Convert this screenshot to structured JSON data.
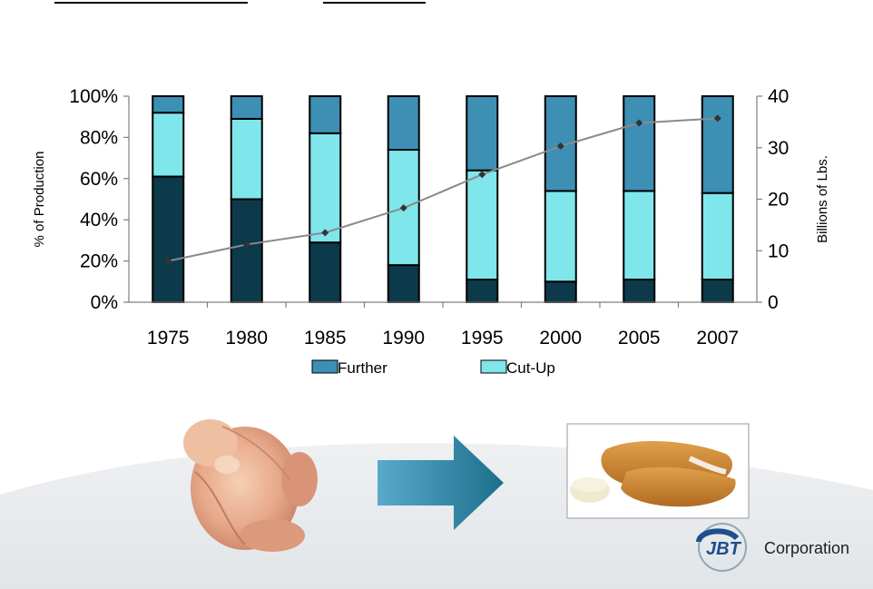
{
  "chart_data": {
    "type": "bar",
    "stacked": true,
    "categories": [
      "1975",
      "1980",
      "1985",
      "1990",
      "1995",
      "2000",
      "2005",
      "2007"
    ],
    "series": [
      {
        "name": "",
        "axis": "left",
        "color": "#0d3a4a",
        "values": [
          61,
          50,
          29,
          18,
          11,
          10,
          11,
          11
        ]
      },
      {
        "name": "Cut-Up",
        "axis": "left",
        "color": "#7fe6ec",
        "values": [
          31,
          39,
          53,
          56,
          53,
          44,
          43,
          42
        ]
      },
      {
        "name": "Further",
        "axis": "left",
        "color": "#3d8fb4",
        "values": [
          8,
          11,
          18,
          26,
          36,
          46,
          46,
          47
        ]
      }
    ],
    "line_series": {
      "name": "",
      "axis": "right",
      "color": "#8a8a8a",
      "values": [
        8,
        11.2,
        13.5,
        18.3,
        24.8,
        30.3,
        34.8,
        35.7
      ]
    },
    "ylabel": "% of Production",
    "y2label": "Billions of Lbs.",
    "ylim": [
      0,
      100
    ],
    "y2lim": [
      0,
      40
    ],
    "yticks": [
      "0%",
      "20%",
      "40%",
      "60%",
      "80%",
      "100%"
    ],
    "y2ticks": [
      "0",
      "10",
      "20",
      "30",
      "40"
    ],
    "legend": {
      "position": "bottom",
      "items": [
        "Further",
        "Cut-Up"
      ]
    },
    "grid": false
  },
  "logo": {
    "company": "Corporation",
    "mark": "JBT"
  },
  "icons": {
    "arrow": "right-arrow-icon",
    "whole_bird": "whole-chicken-image",
    "product": "chicken-tenders-image"
  }
}
